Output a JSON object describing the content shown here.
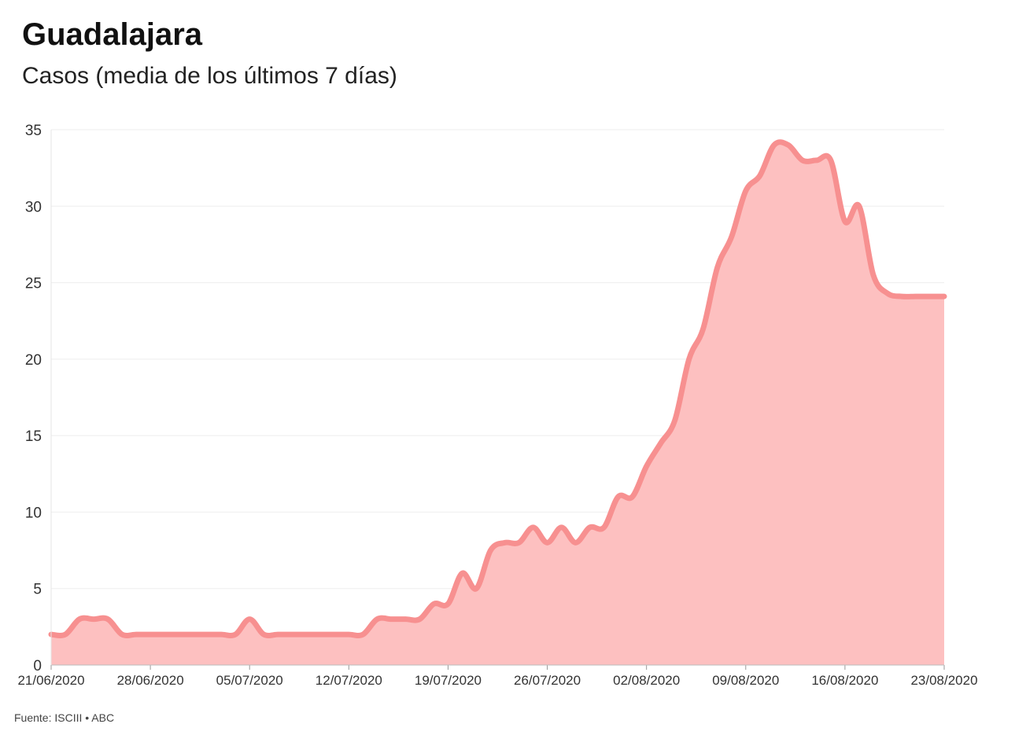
{
  "header": {
    "title": "Guadalajara",
    "subtitle": "Casos (media de los últimos 7 días)"
  },
  "footer": {
    "source": "Fuente: ISCIII • ABC"
  },
  "colors": {
    "line": "#f79090",
    "area": "#fdc0c0",
    "grid": "#eeeeee"
  },
  "chart_data": {
    "type": "area",
    "title": "Guadalajara",
    "subtitle": "Casos (media de los últimos 7 días)",
    "xlabel": "",
    "ylabel": "",
    "ylim": [
      0,
      35
    ],
    "yticks": [
      0,
      5,
      10,
      15,
      20,
      25,
      30,
      35
    ],
    "grid": true,
    "legend": "none",
    "x_tick_labels": [
      "21/06/2020",
      "28/06/2020",
      "05/07/2020",
      "12/07/2020",
      "19/07/2020",
      "26/07/2020",
      "02/08/2020",
      "09/08/2020",
      "16/08/2020",
      "23/08/2020"
    ],
    "x": [
      "21/06/2020",
      "22/06/2020",
      "23/06/2020",
      "24/06/2020",
      "25/06/2020",
      "26/06/2020",
      "27/06/2020",
      "28/06/2020",
      "29/06/2020",
      "30/06/2020",
      "01/07/2020",
      "02/07/2020",
      "03/07/2020",
      "04/07/2020",
      "05/07/2020",
      "06/07/2020",
      "07/07/2020",
      "08/07/2020",
      "09/07/2020",
      "10/07/2020",
      "11/07/2020",
      "12/07/2020",
      "13/07/2020",
      "14/07/2020",
      "15/07/2020",
      "16/07/2020",
      "17/07/2020",
      "18/07/2020",
      "19/07/2020",
      "20/07/2020",
      "21/07/2020",
      "22/07/2020",
      "23/07/2020",
      "24/07/2020",
      "25/07/2020",
      "26/07/2020",
      "27/07/2020",
      "28/07/2020",
      "29/07/2020",
      "30/07/2020",
      "31/07/2020",
      "01/08/2020",
      "02/08/2020",
      "03/08/2020",
      "04/08/2020",
      "05/08/2020",
      "06/08/2020",
      "07/08/2020",
      "08/08/2020",
      "09/08/2020",
      "10/08/2020",
      "11/08/2020",
      "12/08/2020",
      "13/08/2020",
      "14/08/2020",
      "15/08/2020",
      "16/08/2020",
      "17/08/2020",
      "18/08/2020",
      "19/08/2020",
      "20/08/2020",
      "21/08/2020",
      "22/08/2020",
      "23/08/2020"
    ],
    "series": [
      {
        "values": [
          2,
          2,
          3,
          3,
          3,
          2,
          2,
          2,
          2,
          2,
          2,
          2,
          2,
          2,
          3,
          2,
          2,
          2,
          2,
          2,
          2,
          2,
          2,
          3,
          3,
          3,
          3,
          4,
          4,
          6,
          5,
          7.5,
          8,
          8,
          9,
          8,
          9,
          8,
          9,
          9,
          11,
          11,
          13,
          14.5,
          16,
          20,
          22,
          26,
          28,
          31,
          32,
          34,
          34,
          33,
          33,
          33,
          29,
          30,
          25.5,
          24.3,
          24.1,
          24.1,
          24.1,
          24.1
        ]
      }
    ]
  }
}
